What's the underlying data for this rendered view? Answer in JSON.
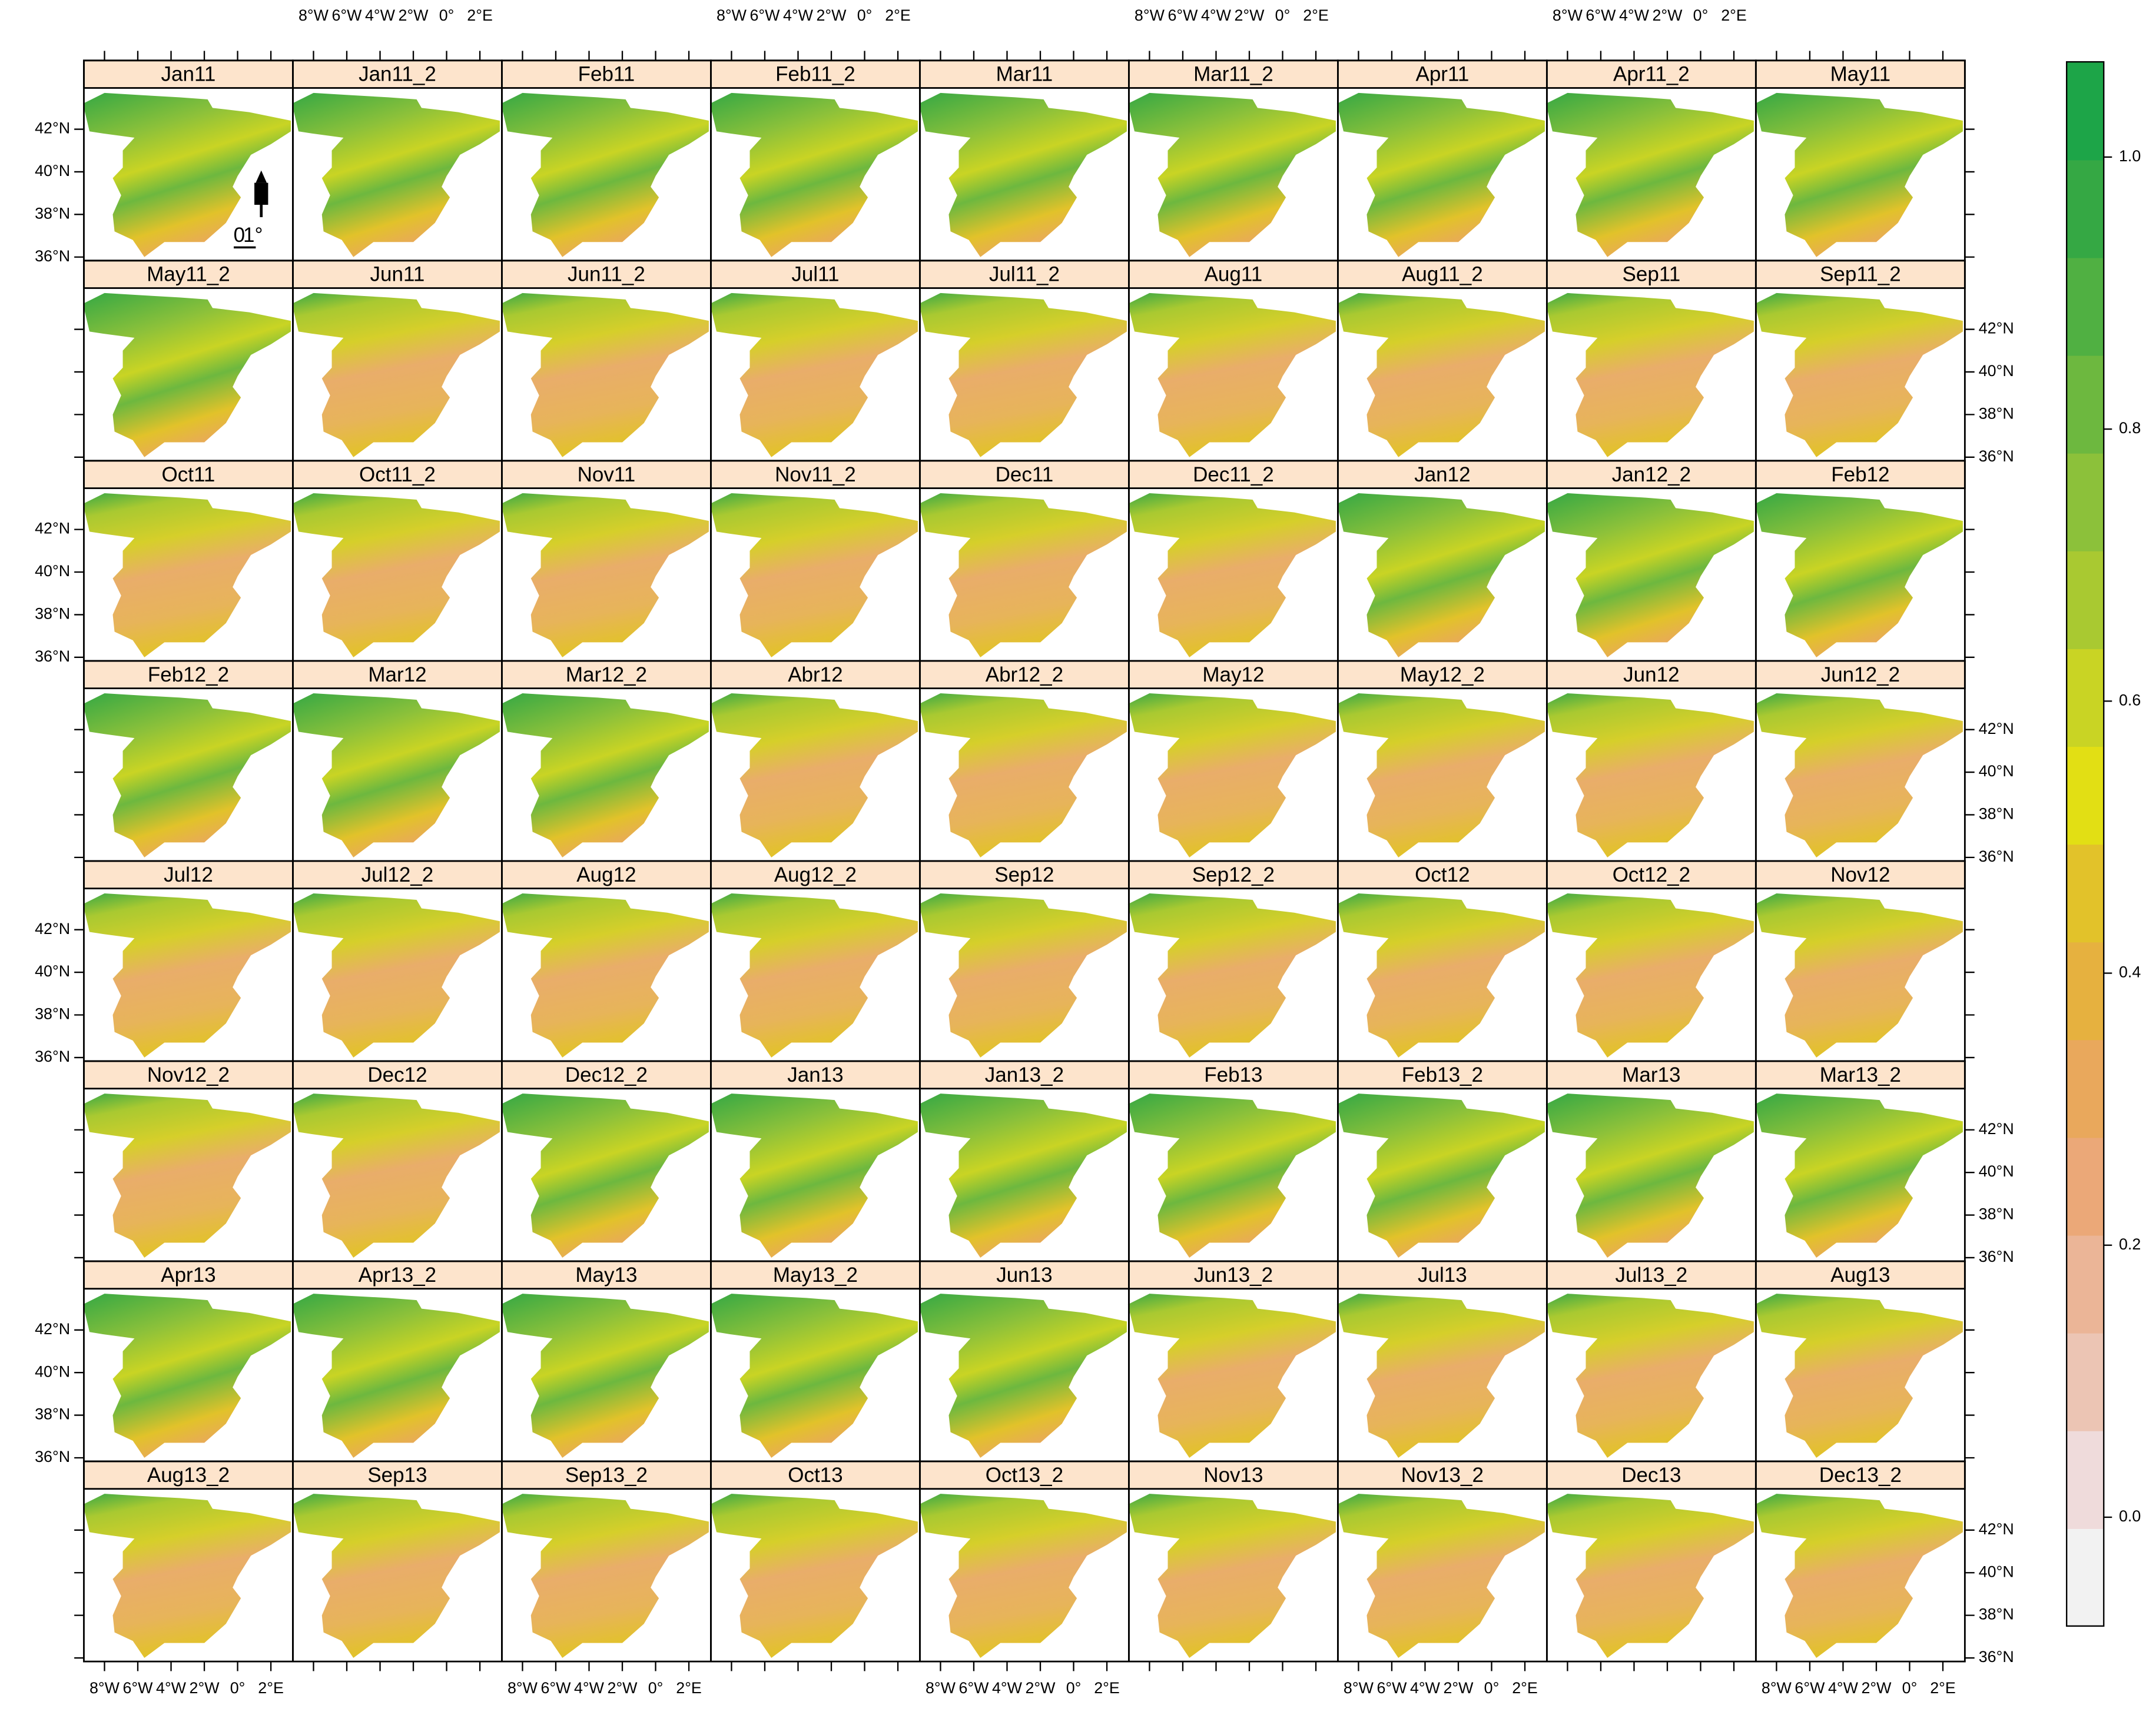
{
  "panels": [
    "Jan11",
    "Jan11_2",
    "Feb11",
    "Feb11_2",
    "Mar11",
    "Mar11_2",
    "Apr11",
    "Apr11_2",
    "May11",
    "May11_2",
    "Jun11",
    "Jun11_2",
    "Jul11",
    "Jul11_2",
    "Aug11",
    "Aug11_2",
    "Sep11",
    "Sep11_2",
    "Oct11",
    "Oct11_2",
    "Nov11",
    "Nov11_2",
    "Dec11",
    "Dec11_2",
    "Jan12",
    "Jan12_2",
    "Feb12",
    "Feb12_2",
    "Mar12",
    "Mar12_2",
    "Abr12",
    "Abr12_2",
    "May12",
    "May12_2",
    "Jun12",
    "Jun12_2",
    "Jul12",
    "Jul12_2",
    "Aug12",
    "Aug12_2",
    "Sep12",
    "Sep12_2",
    "Oct12",
    "Oct12_2",
    "Nov12",
    "Nov12_2",
    "Dec12",
    "Dec12_2",
    "Jan13",
    "Jan13_2",
    "Feb13",
    "Feb13_2",
    "Mar13",
    "Mar13_2",
    "Apr13",
    "Apr13_2",
    "May13",
    "May13_2",
    "Jun13",
    "Jun13_2",
    "Jul13",
    "Jul13_2",
    "Aug13",
    "Aug13_2",
    "Sep13",
    "Sep13_2",
    "Oct13",
    "Oct13_2",
    "Nov13",
    "Nov13_2",
    "Dec13",
    "Dec13_2"
  ],
  "lon_ticks": [
    {
      "value": -8,
      "label": "8°W"
    },
    {
      "value": -6,
      "label": "6°W"
    },
    {
      "value": -4,
      "label": "4°W"
    },
    {
      "value": -2,
      "label": "2°W"
    },
    {
      "value": 0,
      "label": "0°"
    },
    {
      "value": 2,
      "label": "2°E"
    }
  ],
  "lat_ticks": [
    {
      "value": 36,
      "label": "36°N"
    },
    {
      "value": 38,
      "label": "38°N"
    },
    {
      "value": 40,
      "label": "40°N"
    },
    {
      "value": 42,
      "label": "42°N"
    }
  ],
  "north_arrow_label": "0",
  "scale_label": "1°",
  "colorbar": {
    "ylim": [
      -0.08,
      1.07
    ],
    "ticks": [
      {
        "value": 0,
        "label": "0.0"
      },
      0.2,
      0.4,
      0.6,
      0.8,
      {
        "value": 1,
        "label": "1.0"
      }
    ],
    "colors": [
      "#f2f2f2",
      "#efdbdb",
      "#ecc5b4",
      "#ebb597",
      "#eba878",
      "#e9a85c",
      "#e6b13f",
      "#e2c22a",
      "#e2df14",
      "#c9d424",
      "#a9c931",
      "#8cc13a",
      "#6db83f",
      "#50b042",
      "#35a844",
      "#1da548"
    ]
  }
}
